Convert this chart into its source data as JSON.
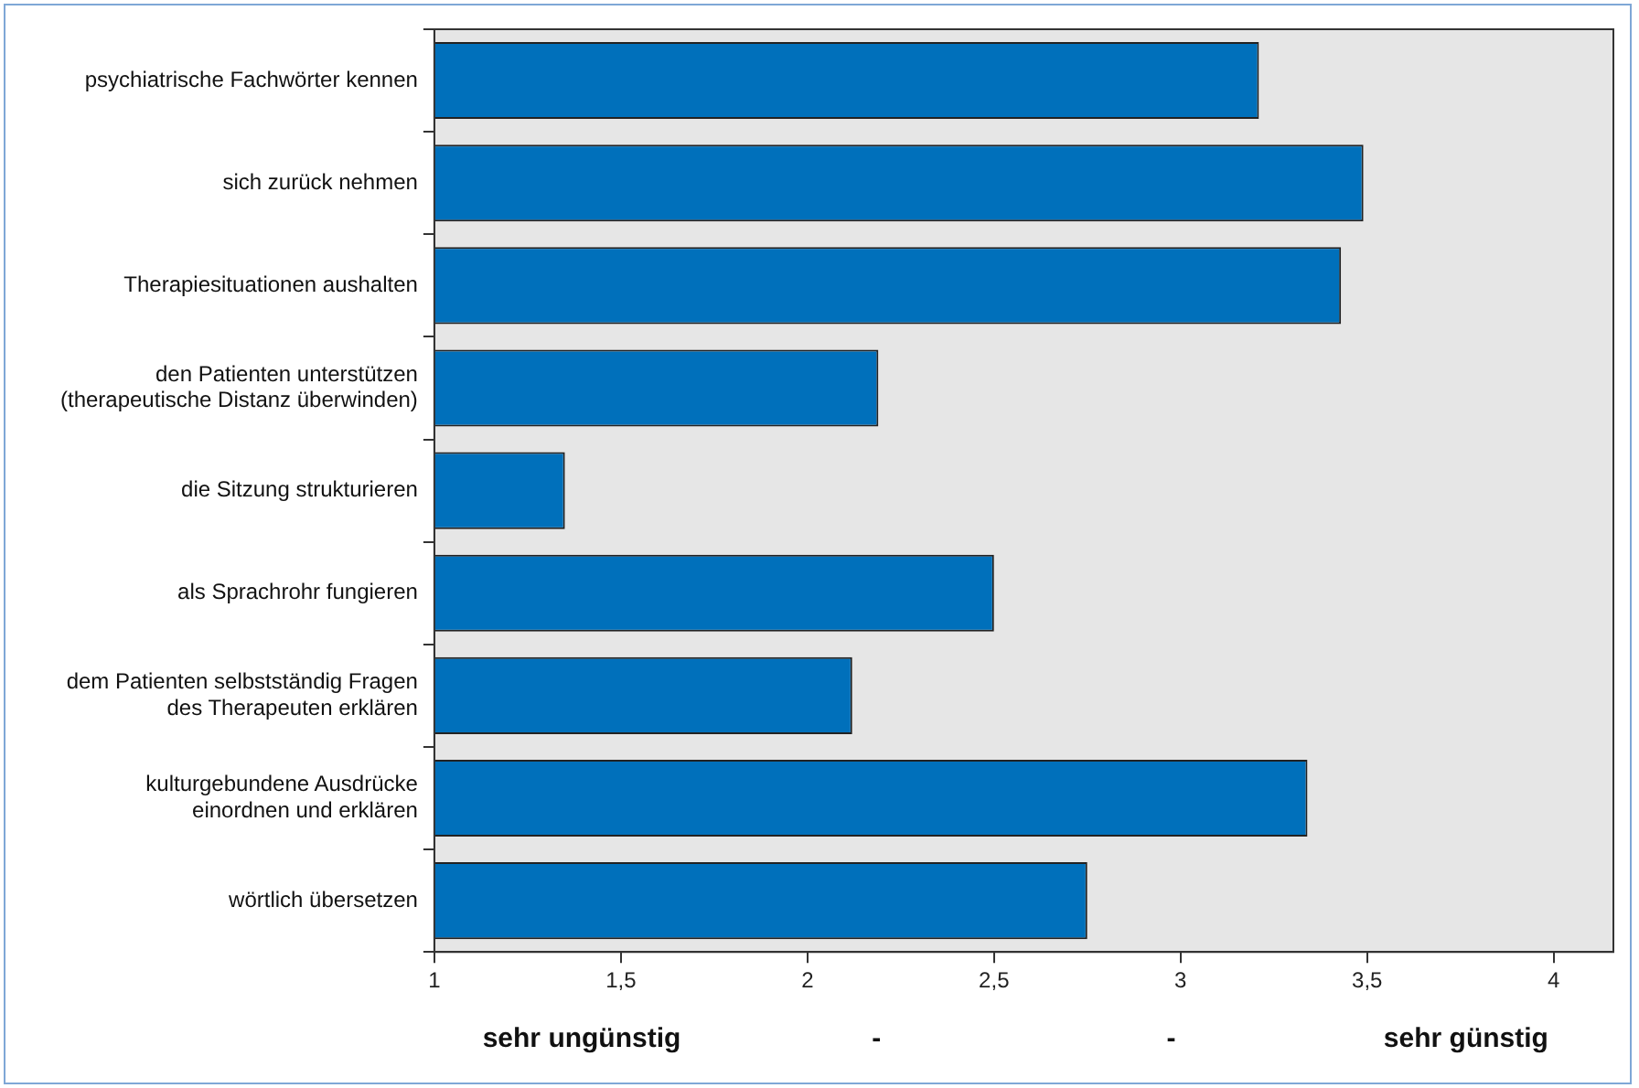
{
  "chart_data": {
    "type": "bar",
    "orientation": "horizontal",
    "categories": [
      "psychiatrische Fachwörter kennen",
      "sich zurück nehmen",
      "Therapiesituationen aushalten",
      "den Patienten unterstützen\n(therapeutische Distanz überwinden)",
      "die Sitzung strukturieren",
      "als Sprachrohr fungieren",
      "dem Patienten selbstständig Fragen\ndes Therapeuten erklären",
      "kulturgebundene Ausdrücke\neinordnen und erklären",
      "wörtlich übersetzen"
    ],
    "values": [
      3.21,
      3.49,
      3.43,
      2.19,
      1.35,
      2.5,
      2.12,
      3.34,
      2.75
    ],
    "color": "#0070bb",
    "xlim": [
      1,
      4.16
    ],
    "xticks": [
      1,
      {
        "value": 1.5,
        "label": "1,5"
      },
      2,
      {
        "value": 2.5,
        "label": "2,5"
      },
      3,
      {
        "value": 3.5,
        "label": "3,5"
      },
      4
    ],
    "grid": false,
    "legend": false,
    "annotations": [
      "sehr ungünstig",
      "-",
      "-",
      "sehr günstig"
    ]
  }
}
